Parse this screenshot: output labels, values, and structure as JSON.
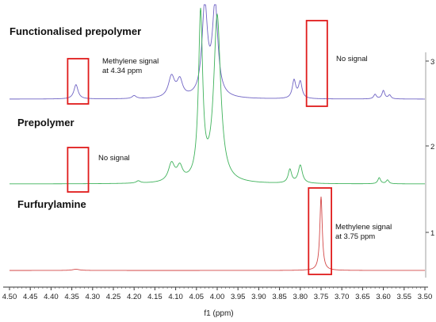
{
  "chart_data": {
    "type": "line",
    "xlabel": "f1 (ppm)",
    "x_reversed": true,
    "xlim": [
      4.5,
      3.5
    ],
    "x_ticks": [
      "4.50",
      "4.45",
      "4.40",
      "4.35",
      "4.30",
      "4.25",
      "4.20",
      "4.15",
      "4.10",
      "4.05",
      "4.00",
      "3.95",
      "3.90",
      "3.85",
      "3.80",
      "3.75",
      "3.70",
      "3.65",
      "3.60",
      "3.55",
      "3.50"
    ],
    "stack_ticks": [
      "3",
      "2",
      "1"
    ],
    "series": [
      {
        "name": "Functionalised prepolymer",
        "color": "#6f63c4",
        "baseline": 3,
        "peaks": [
          {
            "ppm": 4.34,
            "height": 0.19,
            "width": 0.006
          },
          {
            "ppm": 4.2,
            "height": 0.04,
            "width": 0.006
          },
          {
            "ppm": 4.11,
            "height": 0.28,
            "width": 0.009
          },
          {
            "ppm": 4.09,
            "height": 0.22,
            "width": 0.008
          },
          {
            "ppm": 4.03,
            "height": 1.2,
            "width": 0.008
          },
          {
            "ppm": 4.005,
            "height": 1.2,
            "width": 0.008
          },
          {
            "ppm": 3.815,
            "height": 0.24,
            "width": 0.005
          },
          {
            "ppm": 3.8,
            "height": 0.22,
            "width": 0.005
          },
          {
            "ppm": 3.62,
            "height": 0.06,
            "width": 0.004
          },
          {
            "ppm": 3.6,
            "height": 0.11,
            "width": 0.004
          },
          {
            "ppm": 3.585,
            "height": 0.05,
            "width": 0.004
          }
        ]
      },
      {
        "name": "Prepolymer",
        "color": "#3fb25b",
        "baseline": 2,
        "peaks": [
          {
            "ppm": 4.11,
            "height": 0.24,
            "width": 0.009
          },
          {
            "ppm": 4.09,
            "height": 0.18,
            "width": 0.008
          },
          {
            "ppm": 4.19,
            "height": 0.03,
            "width": 0.006
          },
          {
            "ppm": 4.04,
            "height": 2.2,
            "width": 0.006
          },
          {
            "ppm": 4.0,
            "height": 2.2,
            "width": 0.01
          },
          {
            "ppm": 3.825,
            "height": 0.18,
            "width": 0.005
          },
          {
            "ppm": 3.8,
            "height": 0.24,
            "width": 0.006
          },
          {
            "ppm": 3.61,
            "height": 0.08,
            "width": 0.004
          },
          {
            "ppm": 3.59,
            "height": 0.05,
            "width": 0.004
          }
        ]
      },
      {
        "name": "Furfurylamine",
        "color": "#d34747",
        "baseline": 1,
        "peaks": [
          {
            "ppm": 3.75,
            "height": 0.95,
            "width": 0.0035
          },
          {
            "ppm": 4.34,
            "height": 0.015,
            "width": 0.01
          }
        ]
      }
    ],
    "annotations": [
      {
        "text_lines": [
          "Methylene signal",
          "at 4.34 ppm"
        ],
        "box_ppm": [
          4.36,
          4.31
        ],
        "series": "Functionalised prepolymer"
      },
      {
        "text_lines": [
          "No signal"
        ],
        "box_ppm": [
          3.785,
          3.735
        ],
        "series": "Functionalised prepolymer"
      },
      {
        "text_lines": [
          "No signal"
        ],
        "box_ppm": [
          4.36,
          4.31
        ],
        "series": "Prepolymer"
      },
      {
        "text_lines": [
          "Methylene signal",
          "at 3.75 ppm"
        ],
        "box_ppm": [
          3.78,
          3.725
        ],
        "series": "Furfurylamine"
      }
    ]
  }
}
